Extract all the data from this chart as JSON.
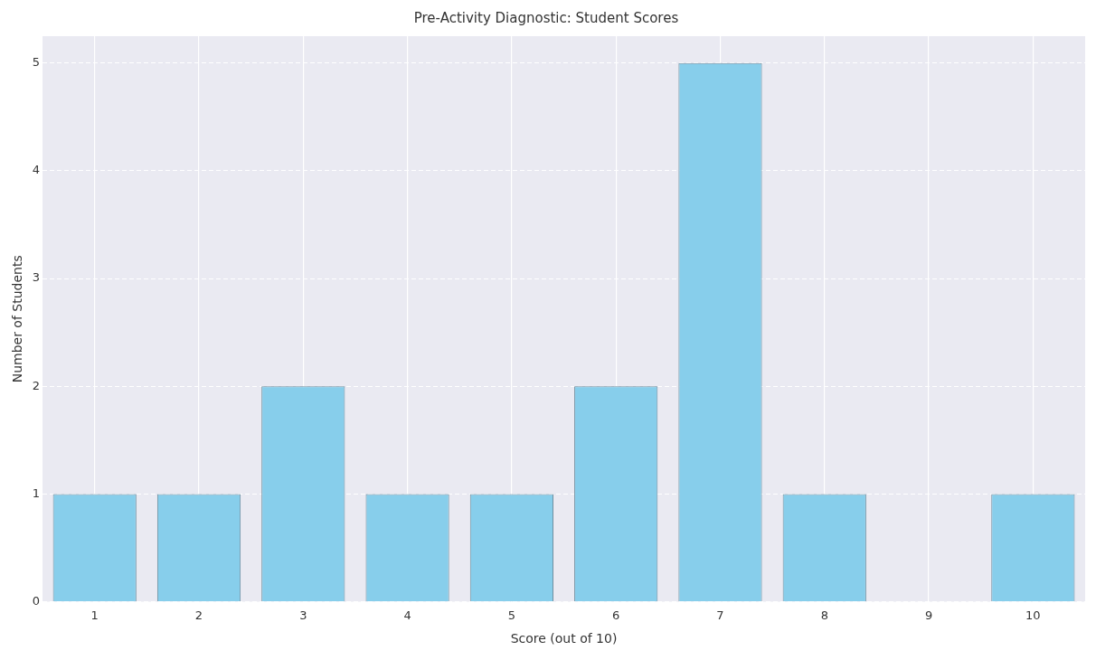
{
  "chart_data": {
    "type": "bar",
    "title": "Pre-Activity Diagnostic: Student Scores",
    "xlabel": "Score (out of 10)",
    "ylabel": "Number of Students",
    "categories": [
      "1",
      "2",
      "3",
      "4",
      "5",
      "6",
      "7",
      "8",
      "9",
      "10"
    ],
    "values": [
      1,
      1,
      2,
      1,
      1,
      2,
      5,
      1,
      0,
      1
    ],
    "color": "#87ceeb",
    "ylim": [
      0,
      5.25
    ],
    "yticks": [
      0,
      1,
      2,
      3,
      4,
      5
    ],
    "grid": true
  }
}
